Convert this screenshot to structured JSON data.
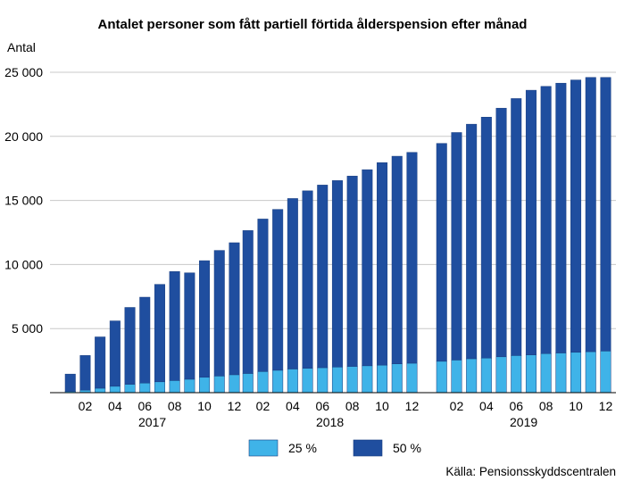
{
  "chart_data": {
    "type": "bar",
    "stacked": true,
    "title": "Antalet personer som fått partiell förtida ålderspension efter månad",
    "ylabel": "Antal",
    "ylim": [
      0,
      25000
    ],
    "yticks": [
      5000,
      10000,
      15000,
      20000,
      25000
    ],
    "ytick_labels": [
      "5 000",
      "10 000",
      "15 000",
      "20 000",
      "25 000"
    ],
    "grid": true,
    "legend_position": "bottom",
    "source": "Källa: Pensionsskyddscentralen",
    "groups": [
      {
        "year": "2017",
        "months": [
          "01",
          "02",
          "03",
          "04",
          "05",
          "06",
          "07",
          "08",
          "09",
          "10",
          "11",
          "12"
        ],
        "month_labels": [
          "",
          "02",
          "",
          "04",
          "",
          "06",
          "",
          "08",
          "",
          "10",
          "",
          "12"
        ],
        "series": [
          {
            "name": "25 %",
            "color": "#3fb3e8",
            "values": [
              100,
              200,
              350,
              500,
              650,
              750,
              850,
              950,
              1050,
              1200,
              1300,
              1400
            ]
          },
          {
            "name": "50 %",
            "color": "#1f4e9f",
            "values": [
              1350,
              2700,
              4000,
              5100,
              6000,
              6700,
              7600,
              8500,
              8300,
              9100,
              9800,
              10300
            ]
          }
        ]
      },
      {
        "year": "2018",
        "months": [
          "01",
          "02",
          "03",
          "04",
          "05",
          "06",
          "07",
          "08",
          "09",
          "10",
          "11",
          "12"
        ],
        "month_labels": [
          "",
          "02",
          "",
          "04",
          "",
          "06",
          "",
          "08",
          "",
          "10",
          "",
          "12"
        ],
        "series": [
          {
            "name": "25 %",
            "color": "#3fb3e8",
            "values": [
              1500,
              1650,
              1750,
              1850,
              1900,
              1950,
              2000,
              2050,
              2100,
              2150,
              2250,
              2300
            ]
          },
          {
            "name": "50 %",
            "color": "#1f4e9f",
            "values": [
              11150,
              11900,
              12550,
              13300,
              13850,
              14250,
              14550,
              14850,
              15300,
              15800,
              16200,
              16450
            ]
          }
        ]
      },
      {
        "year": "2019",
        "months": [
          "01",
          "02",
          "03",
          "04",
          "05",
          "06",
          "07",
          "08",
          "09",
          "10",
          "11",
          "12"
        ],
        "month_labels": [
          "",
          "02",
          "",
          "04",
          "",
          "06",
          "",
          "08",
          "",
          "10",
          "",
          "12"
        ],
        "series": [
          {
            "name": "25 %",
            "color": "#3fb3e8",
            "values": [
              2450,
              2550,
              2650,
              2700,
              2800,
              2900,
              2950,
              3050,
              3100,
              3150,
              3200,
              3250
            ]
          },
          {
            "name": "50 %",
            "color": "#1f4e9f",
            "values": [
              17000,
              17750,
              18300,
              18800,
              19400,
              20050,
              20650,
              20850,
              21050,
              21250,
              21400,
              21350
            ]
          }
        ]
      }
    ]
  }
}
